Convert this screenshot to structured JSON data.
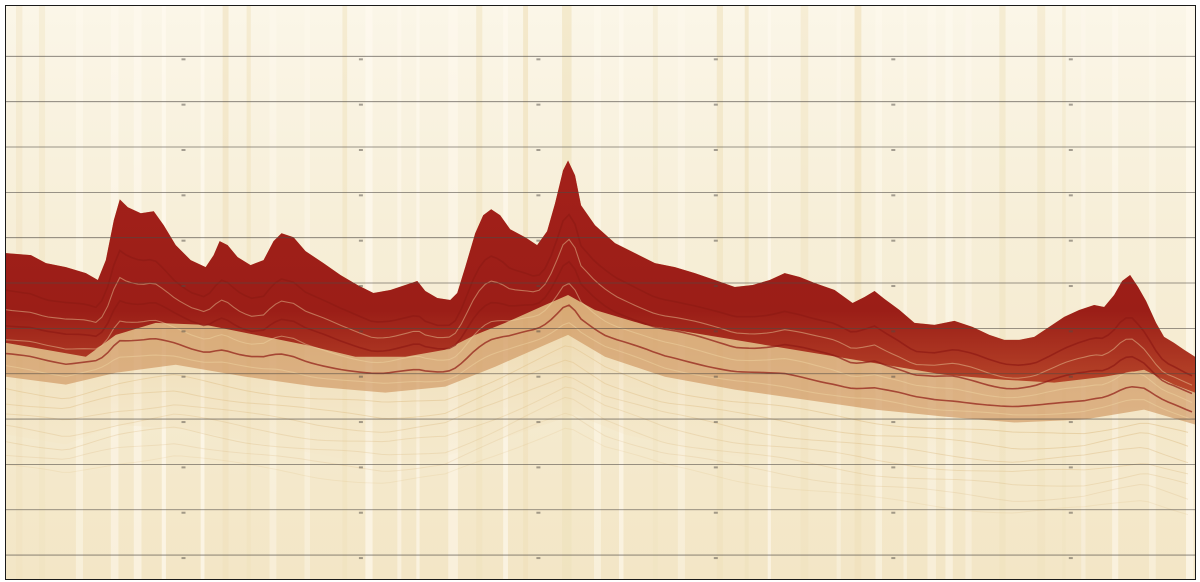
{
  "image": {
    "kind": "sub-bottom seismic reflection profile",
    "has_visible_text": false
  },
  "colors": {
    "background": "#f7efd9",
    "paper_light": "#f8f1dd",
    "sediment_light": "#e9d5a8",
    "sediment_mid": "#d4ac6c",
    "reflector_dark": "#a7221c",
    "reflector_deep": "#8f1a14",
    "grid_line": "#4f4a44",
    "vertical_streak": "#efe1bc"
  },
  "grid": {
    "horizontal_lines": 13,
    "major_vertical_ticks": 6
  }
}
